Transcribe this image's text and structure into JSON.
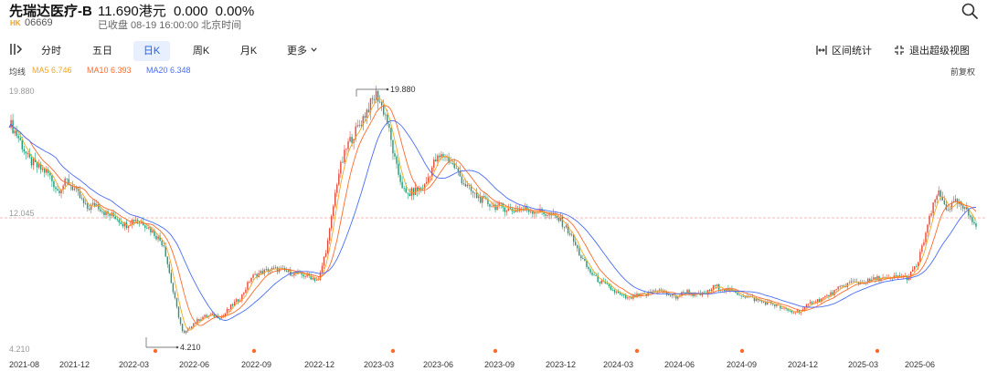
{
  "header": {
    "stock_name": "先瑞达医疗-B",
    "price": "11.690港元",
    "change": "0.000",
    "change_pct": "0.00%",
    "market": "HK",
    "code": "06669",
    "status": "已收盘 08-19 16:00:00 北京时间",
    "search_icon": "search-icon"
  },
  "toolbar": {
    "tabs": [
      {
        "label": "分时",
        "active": false
      },
      {
        "label": "五日",
        "active": false
      },
      {
        "label": "日K",
        "active": true
      },
      {
        "label": "周K",
        "active": false
      },
      {
        "label": "月K",
        "active": false
      },
      {
        "label": "更多",
        "active": false
      }
    ],
    "range_stats": "区间统计",
    "exit_fullscreen": "退出超级视图"
  },
  "ma": {
    "label": "均线",
    "items": [
      {
        "label": "MA5 6.746",
        "color": "#f5a623"
      },
      {
        "label": "MA10 6.393",
        "color": "#ff6a2b"
      },
      {
        "label": "MA20 6.348",
        "color": "#4a6cf7"
      }
    ],
    "adjust_label": "前复权"
  },
  "chart_data": {
    "type": "line",
    "y_axis_labels": [
      "19.880",
      "12.045",
      "4.210"
    ],
    "ylim": [
      4.21,
      19.88
    ],
    "reference_line": 12.045,
    "max_annotation": "19.880",
    "min_annotation": "4.210",
    "x_tick_labels": [
      "2021-08",
      "2021-12",
      "2022-03",
      "2022-06",
      "2022-09",
      "2022-12",
      "2023-03",
      "2023-06",
      "2023-09",
      "2023-12",
      "2024-03",
      "2024-06",
      "2024-09",
      "2024-12",
      "2025-03",
      "2025-06"
    ],
    "event_markers_after_tick": [
      2,
      4,
      6,
      8,
      10,
      12,
      14
    ],
    "colors": {
      "up": "#e34b3b",
      "down": "#1a9e77",
      "ma5": "#f5a623",
      "ma10": "#ff6a2b",
      "ma20": "#4a6cf7",
      "ref": "#f2a3a3",
      "marker": "#ff6a2b"
    },
    "series": [
      {
        "name": "close",
        "x": [
          0,
          2,
          4,
          6,
          8,
          10,
          12,
          14,
          16,
          18,
          20,
          22,
          24,
          26,
          28,
          30,
          32,
          34,
          36,
          38,
          40,
          42,
          44,
          46,
          48,
          50,
          52,
          54,
          56,
          58,
          60,
          62,
          64,
          66,
          68,
          70,
          72,
          74,
          76,
          78,
          80,
          82,
          84,
          86,
          88,
          90,
          92,
          94,
          96,
          98,
          100,
          102,
          104,
          106,
          108,
          110,
          112,
          114,
          116,
          118,
          120,
          122,
          124,
          126,
          128,
          130,
          132,
          134,
          136,
          138,
          140,
          142,
          144,
          146,
          148,
          150,
          152,
          154,
          156,
          158,
          160,
          162,
          164,
          166,
          168,
          170,
          172,
          174,
          176,
          178,
          180,
          182,
          184,
          186,
          188,
          190,
          192,
          194,
          196,
          198,
          200
        ],
        "values": [
          17.9,
          16.9,
          15.6,
          15.1,
          14.8,
          13.7,
          14.3,
          13.6,
          12.6,
          12.9,
          12.3,
          12.1,
          11.6,
          12.0,
          11.7,
          11.1,
          10.4,
          7.4,
          4.9,
          5.6,
          6.0,
          6.1,
          6.0,
          6.7,
          7.2,
          8.4,
          8.7,
          8.9,
          8.9,
          8.7,
          8.6,
          8.5,
          8.2,
          10.7,
          14.6,
          16.5,
          17.5,
          18.6,
          19.6,
          18.2,
          15.2,
          13.4,
          13.7,
          14.0,
          15.5,
          15.9,
          15.2,
          14.2,
          13.5,
          13.1,
          12.8,
          12.7,
          12.5,
          12.6,
          12.5,
          12.4,
          12.2,
          11.9,
          11.1,
          9.8,
          8.8,
          8.2,
          7.8,
          7.4,
          7.1,
          7.3,
          7.4,
          7.7,
          7.4,
          7.2,
          7.6,
          7.3,
          7.4,
          7.9,
          7.7,
          7.5,
          7.3,
          7.1,
          6.9,
          6.8,
          6.5,
          6.3,
          6.4,
          6.9,
          7.1,
          7.4,
          7.8,
          8.1,
          8.1,
          8.2,
          8.4,
          8.3,
          8.5,
          8.4,
          9.3,
          11.6,
          13.6,
          12.6,
          13.0,
          12.4,
          11.7
        ]
      }
    ]
  }
}
